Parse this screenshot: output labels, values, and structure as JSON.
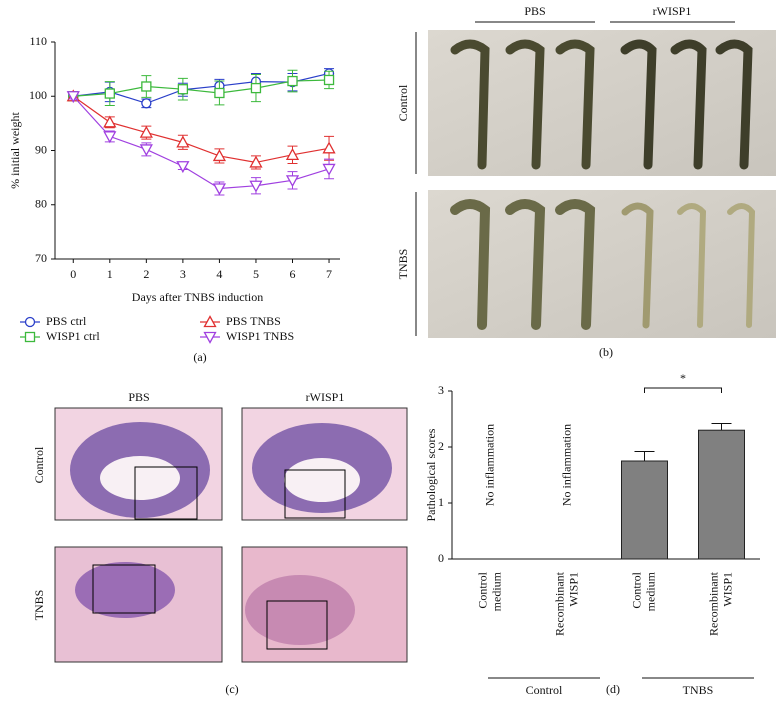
{
  "chart_data": [
    {
      "type": "line",
      "x_label": "Days after TNBS induction",
      "y_label": "% initial weight",
      "x": [
        0,
        1,
        2,
        3,
        4,
        5,
        6,
        7
      ],
      "xlim": [
        -0.5,
        7.3
      ],
      "xticks": [
        0,
        1,
        2,
        3,
        4,
        5,
        6,
        7
      ],
      "ylim": [
        70,
        110
      ],
      "yticks": [
        70,
        80,
        90,
        100,
        110
      ],
      "grid": false,
      "series": [
        {
          "name": "PBS ctrl",
          "color": "#2a3fc9",
          "marker": "circle",
          "values": [
            100,
            100.8,
            98.7,
            101.2,
            101.9,
            102.7,
            102.6,
            104.2
          ],
          "errors": [
            0.5,
            1.8,
            0.8,
            1.2,
            1.2,
            1.5,
            1.6,
            0.9
          ]
        },
        {
          "name": "WISP1 ctrl",
          "color": "#3cb93c",
          "marker": "square",
          "values": [
            100,
            100.5,
            101.8,
            101.3,
            100.6,
            101.5,
            102.8,
            103
          ],
          "errors": [
            0.5,
            2.2,
            2.0,
            2.0,
            2.2,
            2.5,
            2.0,
            1.6
          ]
        },
        {
          "name": "PBS TNBS",
          "color": "#e03030",
          "marker": "triangle-up",
          "values": [
            100,
            95.2,
            93.3,
            91.5,
            89,
            87.8,
            89.2,
            90.4
          ],
          "errors": [
            0.5,
            1.0,
            1.2,
            1.3,
            1.3,
            1.2,
            1.6,
            2.2
          ]
        },
        {
          "name": "WISP1 TNBS",
          "color": "#a040e0",
          "marker": "triangle-down",
          "values": [
            100,
            92.6,
            90.2,
            87.1,
            83,
            83.5,
            84.5,
            86.6
          ],
          "errors": [
            0.5,
            1.0,
            1.2,
            0.6,
            1.2,
            1.5,
            1.6,
            1.8
          ]
        }
      ]
    },
    {
      "type": "bar",
      "y_label": "Pathological scores",
      "categories": [
        [
          "Control",
          "medium"
        ],
        [
          "Recombinant",
          "WISP1"
        ],
        [
          "Control",
          "medium"
        ],
        [
          "Recombinant",
          "WISP1"
        ]
      ],
      "values": [
        null,
        null,
        1.75,
        2.3
      ],
      "errors": [
        null,
        null,
        0.17,
        0.12
      ],
      "color": "#808080",
      "notes": [
        "No inflammation",
        "No inflammation"
      ],
      "groups": [
        "Control",
        "TNBS"
      ],
      "significance": "*",
      "ylim": [
        0,
        3
      ],
      "yticks": [
        0,
        1,
        2,
        3
      ],
      "grid": false
    }
  ],
  "panel_labels": [
    "(a)",
    "(b)",
    "(c)",
    "(d)"
  ],
  "photos_b": {
    "columns": [
      "PBS",
      "rWISP1"
    ],
    "rows": [
      "Control",
      "TNBS"
    ]
  },
  "photos_c": {
    "columns": [
      "PBS",
      "rWISP1"
    ],
    "rows": [
      "Control",
      "TNBS"
    ]
  }
}
